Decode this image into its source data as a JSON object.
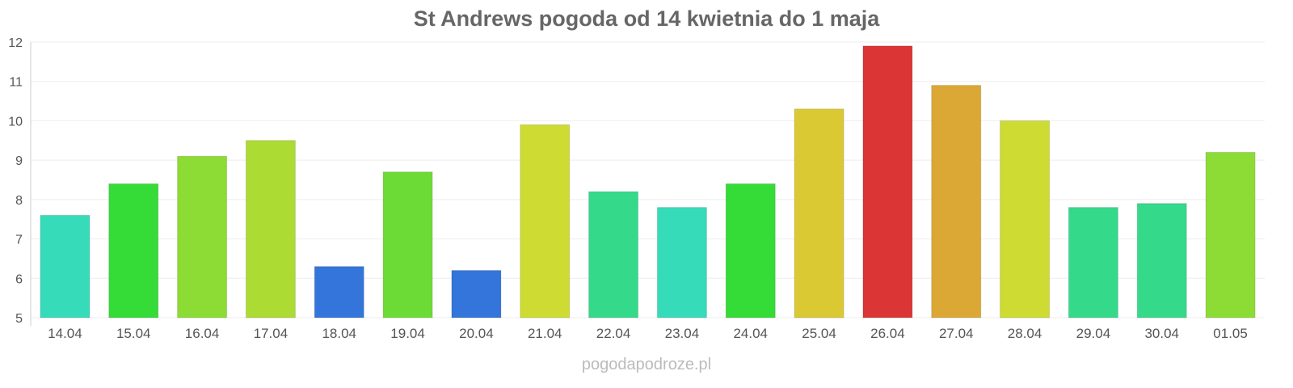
{
  "chart_data": {
    "type": "bar",
    "title": "St Andrews pogoda od 14 kwietnia do 1 maja",
    "xlabel": "",
    "ylabel": "",
    "ylim": [
      5,
      12
    ],
    "yticks": [
      "5",
      "6",
      "7",
      "8",
      "9",
      "10",
      "11",
      "12"
    ],
    "grid": true,
    "categories": [
      "14.04",
      "15.04",
      "16.04",
      "17.04",
      "18.04",
      "19.04",
      "20.04",
      "21.04",
      "22.04",
      "23.04",
      "24.04",
      "25.04",
      "26.04",
      "27.04",
      "28.04",
      "29.04",
      "30.04",
      "01.05"
    ],
    "values": [
      7.6,
      8.4,
      9.1,
      9.5,
      6.3,
      8.7,
      6.2,
      9.9,
      8.2,
      7.8,
      8.4,
      10.3,
      11.9,
      10.9,
      10.0,
      7.8,
      7.9,
      9.2
    ],
    "colors": [
      "#36dbb9",
      "#35db37",
      "#8ddb35",
      "#acdb34",
      "#3375db",
      "#6ddb35",
      "#3375db",
      "#cddb33",
      "#35d98a",
      "#36dbb9",
      "#35db37",
      "#dbc933",
      "#db3535",
      "#dba835",
      "#cddb33",
      "#35d98a",
      "#35d98a",
      "#8ddb35"
    ]
  },
  "credit": "pogodapodroze.pl"
}
